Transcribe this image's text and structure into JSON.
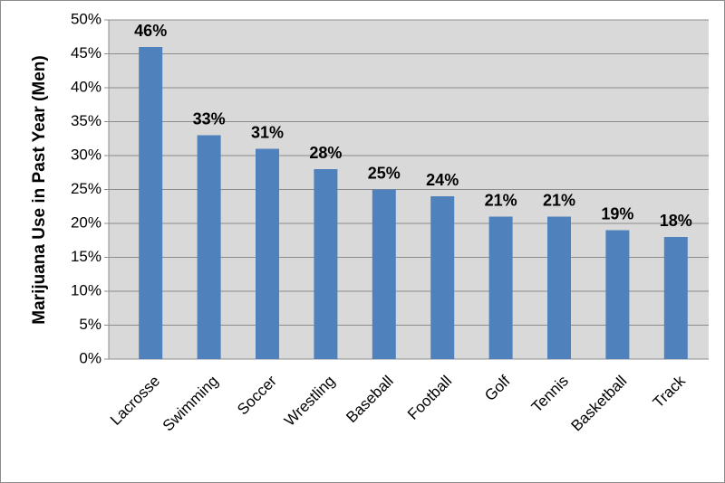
{
  "chart_data": {
    "type": "bar",
    "y_label": "Marijuana Use in Past Year (Men)",
    "categories": [
      "Lacrosse",
      "Swimming",
      "Soccer",
      "Wrestling",
      "Baseball",
      "Football",
      "Golf",
      "Tennis",
      "Basketball",
      "Track"
    ],
    "values": [
      46,
      33,
      31,
      28,
      25,
      24,
      21,
      21,
      19,
      18
    ],
    "value_labels": [
      "46%",
      "33%",
      "31%",
      "28%",
      "25%",
      "24%",
      "21%",
      "21%",
      "19%",
      "18%"
    ],
    "color": "#4f81bd",
    "ylim": [
      0,
      50
    ],
    "yticks": [
      {
        "value": 0,
        "label": "0%"
      },
      {
        "value": 5,
        "label": "5%"
      },
      {
        "value": 10,
        "label": "10%"
      },
      {
        "value": 15,
        "label": "15%"
      },
      {
        "value": 20,
        "label": "20%"
      },
      {
        "value": 25,
        "label": "25%"
      },
      {
        "value": 30,
        "label": "30%"
      },
      {
        "value": 35,
        "label": "35%"
      },
      {
        "value": 40,
        "label": "40%"
      },
      {
        "value": 45,
        "label": "45%"
      },
      {
        "value": 50,
        "label": "50%"
      }
    ],
    "grid": true
  }
}
